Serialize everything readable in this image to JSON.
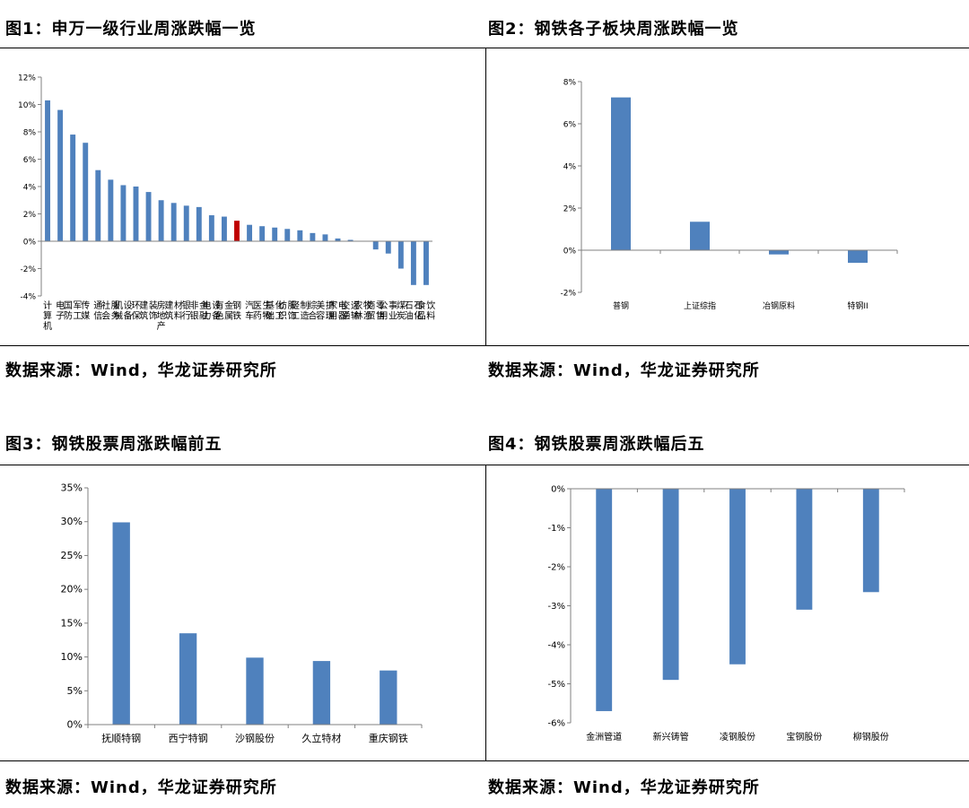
{
  "figures": [
    {
      "title": "图1：申万一级行业周涨跌幅一览",
      "source": "数据来源：Wind，华龙证券研究所",
      "chart_data": {
        "type": "bar",
        "orientation": "vertical",
        "categories": [
          "计算机",
          "电子",
          "国防军工",
          "传媒",
          "通信",
          "社会服务",
          "机械设备",
          "环保",
          "建筑装饰",
          "房地产",
          "建筑材料",
          "银行",
          "非银金融",
          "电力设备",
          "有色金属",
          "钢铁",
          "汽车",
          "医药生物",
          "基础化工",
          "纺织服饰",
          "轻工制造",
          "综合",
          "美容护理",
          "家用电器",
          "交通运输",
          "农林牧渔",
          "商贸零售",
          "公用事业",
          "煤炭",
          "石油石化",
          "食品饮料"
        ],
        "values": [
          10.3,
          9.6,
          7.8,
          7.2,
          5.2,
          4.5,
          4.1,
          4.0,
          3.6,
          3.0,
          2.8,
          2.6,
          2.5,
          1.9,
          1.8,
          1.5,
          1.2,
          1.1,
          1.0,
          0.9,
          0.8,
          0.6,
          0.5,
          0.2,
          0.1,
          0.0,
          -0.6,
          -0.9,
          -2.0,
          -3.2,
          -3.2
        ],
        "highlight_category": "钢铁",
        "ylim": [
          -4,
          12
        ],
        "yticks": [
          "-4%",
          "-2%",
          "0%",
          "2%",
          "4%",
          "6%",
          "8%",
          "10%",
          "12%"
        ],
        "ytick_values": [
          -4,
          -2,
          0,
          2,
          4,
          6,
          8,
          10,
          12
        ],
        "bar_color": "#4F81BD",
        "highlight_color": "#C00000",
        "xlabel": "",
        "ylabel": "",
        "title": ""
      }
    },
    {
      "title": "图2：钢铁各子板块周涨跌幅一览",
      "source": "数据来源：Wind，华龙证券研究所",
      "chart_data": {
        "type": "bar",
        "orientation": "vertical",
        "categories": [
          "普钢",
          "上证综指",
          "冶钢原料",
          "特钢II"
        ],
        "values": [
          7.25,
          1.35,
          -0.2,
          -0.6
        ],
        "ylim": [
          -2,
          8
        ],
        "yticks": [
          "-2%",
          "0%",
          "2%",
          "4%",
          "6%",
          "8%"
        ],
        "ytick_values": [
          -2,
          0,
          2,
          4,
          6,
          8
        ],
        "bar_color": "#4F81BD",
        "xlabel": "",
        "ylabel": "",
        "title": ""
      }
    },
    {
      "title": "图3：钢铁股票周涨跌幅前五",
      "source": "数据来源：Wind，华龙证券研究所",
      "chart_data": {
        "type": "bar",
        "orientation": "vertical",
        "categories": [
          "抚顺特钢",
          "西宁特钢",
          "沙钢股份",
          "久立特材",
          "重庆钢铁"
        ],
        "values": [
          29.9,
          13.5,
          9.9,
          9.4,
          8.0
        ],
        "ylim": [
          0,
          35
        ],
        "yticks": [
          "0%",
          "5%",
          "10%",
          "15%",
          "20%",
          "25%",
          "30%",
          "35%"
        ],
        "ytick_values": [
          0,
          5,
          10,
          15,
          20,
          25,
          30,
          35
        ],
        "bar_color": "#4F81BD",
        "xlabel": "",
        "ylabel": "",
        "title": ""
      }
    },
    {
      "title": "图4：钢铁股票周涨跌幅后五",
      "source": "数据来源：Wind，华龙证券研究所",
      "chart_data": {
        "type": "bar",
        "orientation": "vertical",
        "categories": [
          "金洲管道",
          "新兴铸管",
          "凌钢股份",
          "宝钢股份",
          "柳钢股份"
        ],
        "values": [
          -5.7,
          -4.9,
          -4.5,
          -3.1,
          -2.65
        ],
        "ylim": [
          -6,
          0
        ],
        "yticks": [
          "-6%",
          "-5%",
          "-4%",
          "-3%",
          "-2%",
          "-1%",
          "0%"
        ],
        "ytick_values": [
          -6,
          -5,
          -4,
          -3,
          -2,
          -1,
          0
        ],
        "bar_color": "#4F81BD",
        "xlabel": "",
        "ylabel": "",
        "title": ""
      }
    }
  ]
}
